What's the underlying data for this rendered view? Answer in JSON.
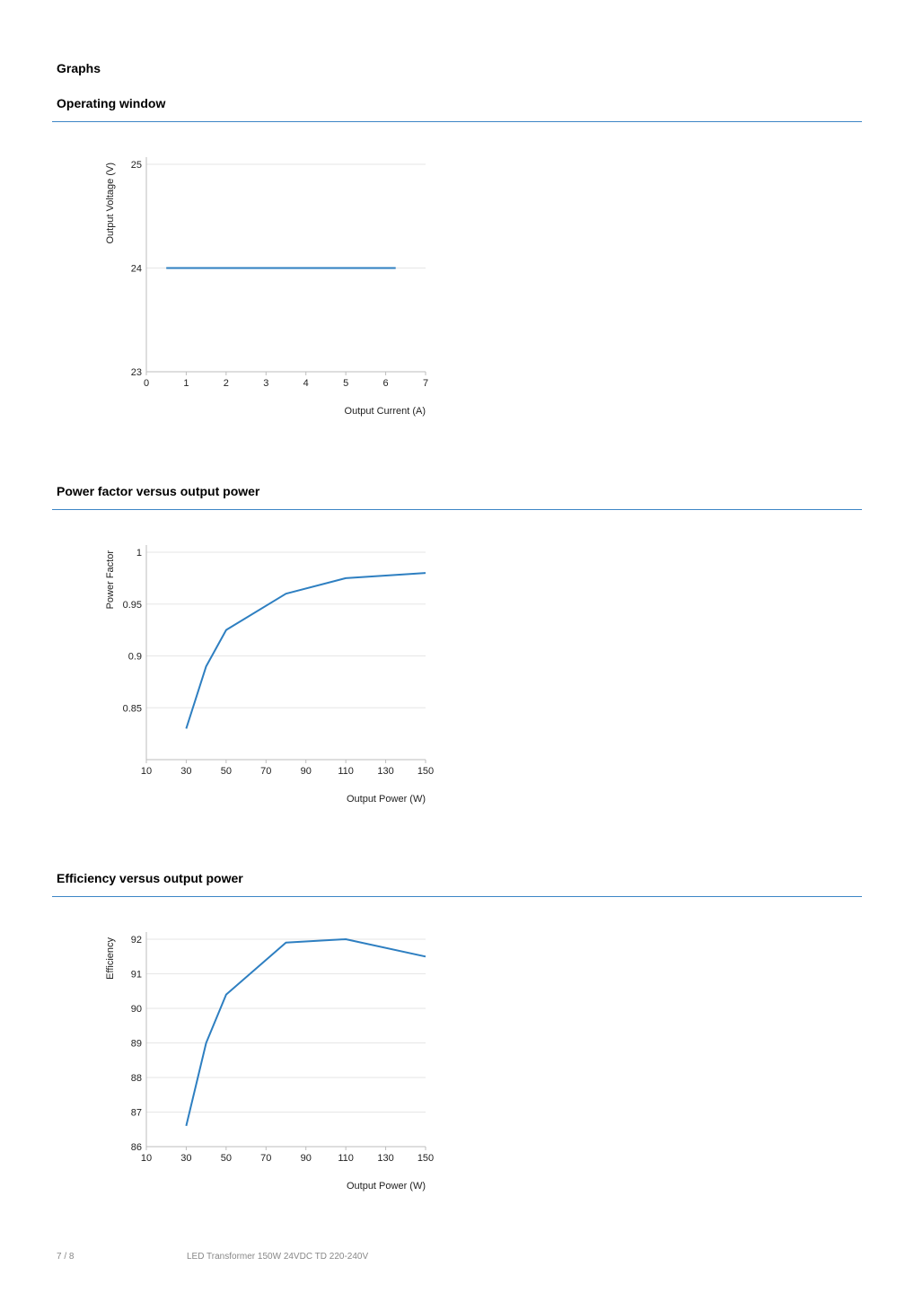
{
  "page": {
    "heading": "Graphs",
    "footer": {
      "page_number": "7 / 8",
      "product": "LED Transformer 150W 24VDC TD 220-240V"
    }
  },
  "sections": [
    {
      "title": "Operating window"
    },
    {
      "title": "Power factor versus output power"
    },
    {
      "title": "Efficiency versus output power"
    }
  ],
  "colors": {
    "series": "#2e7fc1",
    "rule": "#3d86c6",
    "grid": "#e6e6e6",
    "axis": "#bdbdbd"
  },
  "chart_data": [
    {
      "type": "line",
      "xlabel": "Output Current (A)",
      "ylabel": "Output Voltage (V)",
      "xlim": [
        0,
        7
      ],
      "ylim": [
        23,
        25
      ],
      "xticks": [
        0,
        1,
        2,
        3,
        4,
        5,
        6,
        7
      ],
      "yticks": [
        23,
        24,
        25
      ],
      "ytick_labels": [
        "23",
        "24",
        "25"
      ],
      "grid": true,
      "series": [
        {
          "x": [
            0.5,
            6.25
          ],
          "y": [
            24,
            24
          ]
        }
      ]
    },
    {
      "type": "line",
      "xlabel": "Output Power (W)",
      "ylabel": "Power Factor",
      "xlim": [
        10,
        150
      ],
      "ylim": [
        0.8,
        1
      ],
      "xticks": [
        10,
        30,
        50,
        70,
        90,
        110,
        130,
        150
      ],
      "yticks": [
        0.85,
        0.9,
        0.95,
        1
      ],
      "ytick_labels": [
        "0.85",
        "0.9",
        "0.95",
        "1"
      ],
      "grid": true,
      "series": [
        {
          "x": [
            30,
            40,
            50,
            80,
            110,
            150
          ],
          "y": [
            0.83,
            0.89,
            0.925,
            0.96,
            0.975,
            0.98
          ]
        }
      ]
    },
    {
      "type": "line",
      "xlabel": "Output Power (W)",
      "ylabel": "Efficiency",
      "xlim": [
        10,
        150
      ],
      "ylim": [
        86,
        92
      ],
      "xticks": [
        10,
        30,
        50,
        70,
        90,
        110,
        130,
        150
      ],
      "yticks": [
        86,
        87,
        88,
        89,
        90,
        91,
        92
      ],
      "ytick_labels": [
        "86",
        "87",
        "88",
        "89",
        "90",
        "91",
        "92"
      ],
      "grid": true,
      "series": [
        {
          "x": [
            30,
            40,
            50,
            80,
            110,
            150
          ],
          "y": [
            86.6,
            89.0,
            90.4,
            91.9,
            92.0,
            91.5
          ]
        }
      ]
    }
  ]
}
